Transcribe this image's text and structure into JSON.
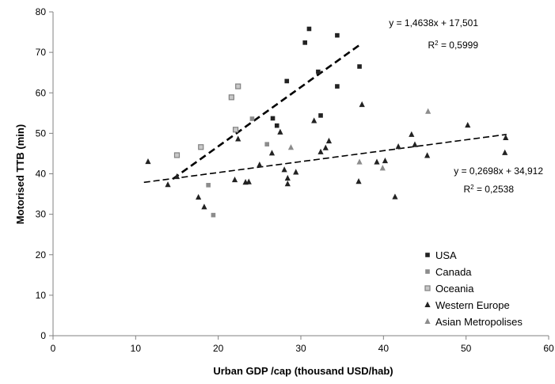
{
  "chart_data": {
    "type": "scatter",
    "title": "",
    "xlabel": "Urban GDP /cap (thousand USD/hab)",
    "ylabel": "Motorised TTB (min)",
    "xlim": [
      0,
      60
    ],
    "ylim": [
      0,
      80
    ],
    "x_ticks": [
      "0",
      "10",
      "20",
      "30",
      "40",
      "50",
      "60"
    ],
    "y_ticks": [
      "0",
      "10",
      "20",
      "30",
      "40",
      "50",
      "60",
      "70",
      "80"
    ],
    "grid": false,
    "legend_position": "bottom-right",
    "series": [
      {
        "name": "USA",
        "marker": "square",
        "color": "#222222",
        "points": [
          [
            26.6,
            53.7
          ],
          [
            27.1,
            51.9
          ],
          [
            28.3,
            62.9
          ],
          [
            30.5,
            72.4
          ],
          [
            31.0,
            75.8
          ],
          [
            32.1,
            65.2
          ],
          [
            32.4,
            54.4
          ],
          [
            34.4,
            74.2
          ],
          [
            34.4,
            61.6
          ],
          [
            37.1,
            66.5
          ]
        ]
      },
      {
        "name": "Canada",
        "marker": "square",
        "color": "#8c8c8c",
        "points": [
          [
            18.8,
            37.2
          ],
          [
            19.4,
            29.8
          ],
          [
            24.1,
            53.6
          ],
          [
            25.9,
            47.3
          ]
        ]
      },
      {
        "name": "Oceania",
        "marker": "square-outline",
        "color": "#808080",
        "points": [
          [
            15.0,
            44.6
          ],
          [
            17.9,
            46.6
          ],
          [
            21.6,
            58.9
          ],
          [
            22.1,
            50.9
          ],
          [
            22.4,
            61.6
          ]
        ]
      },
      {
        "name": "Western Europe",
        "marker": "triangle",
        "color": "#222222",
        "points": [
          [
            11.5,
            43.0
          ],
          [
            13.9,
            37.3
          ],
          [
            15.0,
            39.3
          ],
          [
            17.6,
            34.2
          ],
          [
            18.3,
            31.8
          ],
          [
            22.0,
            38.5
          ],
          [
            22.4,
            48.6
          ],
          [
            23.3,
            37.9
          ],
          [
            23.7,
            38.0
          ],
          [
            25.0,
            42.2
          ],
          [
            26.5,
            45.1
          ],
          [
            27.5,
            50.3
          ],
          [
            28.0,
            41.0
          ],
          [
            28.4,
            37.5
          ],
          [
            28.4,
            38.9
          ],
          [
            29.4,
            40.4
          ],
          [
            31.6,
            53.1
          ],
          [
            32.4,
            45.4
          ],
          [
            33.0,
            46.4
          ],
          [
            33.4,
            48.1
          ],
          [
            37.0,
            38.1
          ],
          [
            37.4,
            57.1
          ],
          [
            39.2,
            42.9
          ],
          [
            40.2,
            43.2
          ],
          [
            41.4,
            34.3
          ],
          [
            41.8,
            46.7
          ],
          [
            43.4,
            49.7
          ],
          [
            43.8,
            47.2
          ],
          [
            45.3,
            44.5
          ],
          [
            50.2,
            52.0
          ],
          [
            54.7,
            45.2
          ],
          [
            54.8,
            48.9
          ]
        ]
      },
      {
        "name": "Asian Metropolises",
        "marker": "triangle",
        "color": "#8c8c8c",
        "points": [
          [
            28.8,
            46.5
          ],
          [
            37.1,
            42.9
          ],
          [
            39.9,
            41.4
          ],
          [
            45.4,
            55.4
          ]
        ]
      }
    ],
    "trendlines": [
      {
        "label": "y = 1,4638x + 17,501",
        "r2_label": "R",
        "r2_sup": "2",
        "r2_value": " = 0,5999",
        "slope": 1.4638,
        "intercept": 17.501,
        "x_range": [
          14.5,
          37.3
        ],
        "style": "dashed-bold"
      },
      {
        "label": "y = 0,2698x + 34,912",
        "r2_label": "R",
        "r2_sup": "2",
        "r2_value": " = 0,2538",
        "slope": 0.2698,
        "intercept": 34.912,
        "x_range": [
          11.0,
          54.9
        ],
        "style": "dashed-thin"
      }
    ]
  }
}
